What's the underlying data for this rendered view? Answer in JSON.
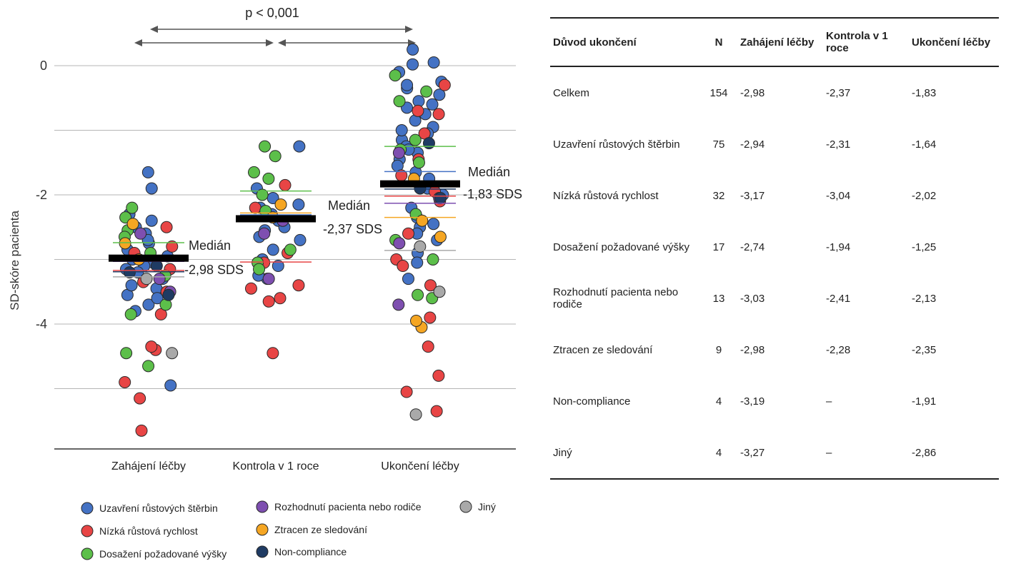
{
  "chart_data": {
    "type": "scatter",
    "ylabel": "SD-skóre pacienta",
    "yticks": [
      0,
      -2,
      -4
    ],
    "ylim": [
      -5.9,
      0.3
    ],
    "grid": true,
    "categories": [
      "Zahájení léčby",
      "Kontrola v 1 roce",
      "Ukončení léčby"
    ],
    "significance": "p < 0,001",
    "medians": [
      {
        "category": "Zahájení léčby",
        "value": -2.98,
        "label": "Medián",
        "value_label": "-2,98 SDS"
      },
      {
        "category": "Kontrola v 1 roce",
        "value": -2.37,
        "label": "Medián",
        "value_label": "-2,37 SDS"
      },
      {
        "category": "Ukončení léčby",
        "value": -1.83,
        "label": "Medián",
        "value_label": "-1,83 SDS"
      }
    ],
    "group_medians": [
      {
        "group": "Uzavření růstových štěrbin",
        "values": [
          -2.94,
          -2.31,
          -1.64
        ]
      },
      {
        "group": "Nízká růstová rychlost",
        "values": [
          -3.17,
          -3.04,
          -2.02
        ]
      },
      {
        "group": "Dosažení požadované výšky",
        "values": [
          -2.74,
          -1.94,
          -1.25
        ]
      },
      {
        "group": "Rozhodnutí pacienta nebo rodiče",
        "values": [
          -3.03,
          -2.41,
          -2.13
        ]
      },
      {
        "group": "Ztracen ze sledování",
        "values": [
          -2.98,
          -2.28,
          -2.35
        ]
      },
      {
        "group": "Non-compliance",
        "values": [
          -3.19,
          null,
          -1.91
        ]
      },
      {
        "group": "Jiný",
        "values": [
          -3.27,
          null,
          -2.86
        ]
      }
    ],
    "series": [
      {
        "name": "Uzavření růstových štěrbin",
        "color": "#4472c4",
        "points": [
          [
            0,
            -1.65
          ],
          [
            0,
            -1.9
          ],
          [
            0,
            -2.3
          ],
          [
            0,
            -2.5
          ],
          [
            0,
            -2.6
          ],
          [
            0,
            -2.75
          ],
          [
            0,
            -2.85
          ],
          [
            0,
            -2.95
          ],
          [
            0,
            -3.05
          ],
          [
            0,
            -3.1
          ],
          [
            0,
            -3.2
          ],
          [
            0,
            -3.3
          ],
          [
            0,
            -3.45
          ],
          [
            0,
            -3.55
          ],
          [
            0,
            -3.7
          ],
          [
            0,
            -3.8
          ],
          [
            0,
            -3.6
          ],
          [
            0,
            -3.4
          ],
          [
            0,
            -2.4
          ],
          [
            0,
            -2.7
          ],
          [
            0,
            -3.0
          ],
          [
            0,
            -3.15
          ],
          [
            0,
            -4.95
          ],
          [
            1,
            -1.25
          ],
          [
            1,
            -1.9
          ],
          [
            1,
            -2.05
          ],
          [
            1,
            -2.15
          ],
          [
            1,
            -2.2
          ],
          [
            1,
            -2.3
          ],
          [
            1,
            -2.4
          ],
          [
            1,
            -2.5
          ],
          [
            1,
            -2.55
          ],
          [
            1,
            -2.65
          ],
          [
            1,
            -2.7
          ],
          [
            1,
            -2.85
          ],
          [
            1,
            -3.0
          ],
          [
            1,
            -3.1
          ],
          [
            1,
            -3.3
          ],
          [
            1,
            -3.25
          ],
          [
            2,
            0.05
          ],
          [
            2,
            0.25
          ],
          [
            2,
            0.02
          ],
          [
            2,
            -0.1
          ],
          [
            2,
            -0.25
          ],
          [
            2,
            -0.35
          ],
          [
            2,
            -0.45
          ],
          [
            2,
            -0.55
          ],
          [
            2,
            -0.65
          ],
          [
            2,
            -0.75
          ],
          [
            2,
            -0.85
          ],
          [
            2,
            -0.95
          ],
          [
            2,
            -1.05
          ],
          [
            2,
            -1.15
          ],
          [
            2,
            -1.25
          ],
          [
            2,
            -1.35
          ],
          [
            2,
            -1.45
          ],
          [
            2,
            -1.55
          ],
          [
            2,
            -1.65
          ],
          [
            2,
            -1.75
          ],
          [
            2,
            -1.9
          ],
          [
            2,
            -2.0
          ],
          [
            2,
            -2.2
          ],
          [
            2,
            -2.35
          ],
          [
            2,
            -2.5
          ],
          [
            2,
            -2.6
          ],
          [
            2,
            -2.7
          ],
          [
            2,
            -2.9
          ],
          [
            2,
            -3.05
          ],
          [
            2,
            -3.3
          ],
          [
            2,
            -0.3
          ],
          [
            2,
            -0.6
          ],
          [
            2,
            -1.0
          ],
          [
            2,
            -1.3
          ],
          [
            2,
            -2.45
          ]
        ]
      },
      {
        "name": "Nízká růstová rychlost",
        "color": "#e84545",
        "points": [
          [
            0,
            -2.5
          ],
          [
            0,
            -2.8
          ],
          [
            0,
            -3.15
          ],
          [
            0,
            -3.5
          ],
          [
            0,
            -3.85
          ],
          [
            0,
            -4.4
          ],
          [
            0,
            -4.35
          ],
          [
            0,
            -4.9
          ],
          [
            0,
            -5.15
          ],
          [
            0,
            -5.65
          ],
          [
            0,
            -2.9
          ],
          [
            0,
            -3.35
          ],
          [
            1,
            -1.85
          ],
          [
            1,
            -2.9
          ],
          [
            1,
            -3.05
          ],
          [
            1,
            -3.4
          ],
          [
            1,
            -3.45
          ],
          [
            1,
            -3.65
          ],
          [
            1,
            -3.6
          ],
          [
            1,
            -4.45
          ],
          [
            1,
            -2.2
          ],
          [
            2,
            -0.3
          ],
          [
            2,
            -0.7
          ],
          [
            2,
            -0.75
          ],
          [
            2,
            -1.05
          ],
          [
            2,
            -1.45
          ],
          [
            2,
            -1.7
          ],
          [
            2,
            -1.95
          ],
          [
            2,
            -2.1
          ],
          [
            2,
            -2.6
          ],
          [
            2,
            -3.0
          ],
          [
            2,
            -3.1
          ],
          [
            2,
            -3.4
          ],
          [
            2,
            -3.9
          ],
          [
            2,
            -4.35
          ],
          [
            2,
            -4.8
          ],
          [
            2,
            -5.05
          ],
          [
            2,
            -5.35
          ]
        ]
      },
      {
        "name": "Dosažení požadované výšky",
        "color": "#5cbf4a",
        "points": [
          [
            0,
            -2.2
          ],
          [
            0,
            -2.35
          ],
          [
            0,
            -2.55
          ],
          [
            0,
            -2.65
          ],
          [
            0,
            -2.9
          ],
          [
            0,
            -3.25
          ],
          [
            0,
            -3.7
          ],
          [
            0,
            -3.85
          ],
          [
            0,
            -4.65
          ],
          [
            0,
            -4.45
          ],
          [
            1,
            -1.25
          ],
          [
            1,
            -1.4
          ],
          [
            1,
            -1.65
          ],
          [
            1,
            -1.75
          ],
          [
            1,
            -2.0
          ],
          [
            1,
            -2.25
          ],
          [
            1,
            -2.85
          ],
          [
            1,
            -3.05
          ],
          [
            1,
            -3.15
          ],
          [
            2,
            -0.15
          ],
          [
            2,
            -0.4
          ],
          [
            2,
            -0.55
          ],
          [
            2,
            -1.15
          ],
          [
            2,
            -1.3
          ],
          [
            2,
            -1.5
          ],
          [
            2,
            -2.3
          ],
          [
            2,
            -2.7
          ],
          [
            2,
            -3.0
          ],
          [
            2,
            -3.55
          ],
          [
            2,
            -3.6
          ]
        ]
      },
      {
        "name": "Rozhodnutí pacienta nebo rodiče",
        "color": "#7e4fb0",
        "points": [
          [
            0,
            -2.6
          ],
          [
            0,
            -3.5
          ],
          [
            0,
            -3.3
          ],
          [
            1,
            -2.4
          ],
          [
            1,
            -2.6
          ],
          [
            1,
            -3.3
          ],
          [
            2,
            -1.35
          ],
          [
            2,
            -2.05
          ],
          [
            2,
            -2.75
          ],
          [
            2,
            -3.7
          ]
        ]
      },
      {
        "name": "Ztracen ze sledování",
        "color": "#f5a623",
        "points": [
          [
            0,
            -2.45
          ],
          [
            0,
            -3.0
          ],
          [
            0,
            -2.75
          ],
          [
            1,
            -2.15
          ],
          [
            1,
            -2.35
          ],
          [
            2,
            -1.75
          ],
          [
            2,
            -2.4
          ],
          [
            2,
            -2.65
          ],
          [
            2,
            -4.05
          ],
          [
            2,
            -3.95
          ]
        ]
      },
      {
        "name": "Non-compliance",
        "color": "#1f3b63",
        "points": [
          [
            0,
            -3.2
          ],
          [
            0,
            -3.55
          ],
          [
            0,
            -3.1
          ],
          [
            2,
            -1.9
          ],
          [
            2,
            -2.05
          ],
          [
            2,
            -1.2
          ]
        ]
      },
      {
        "name": "Jiný",
        "color": "#a9a9a9",
        "points": [
          [
            0,
            -3.3
          ],
          [
            0,
            -4.45
          ],
          [
            2,
            -3.5
          ],
          [
            2,
            -5.4
          ],
          [
            2,
            -2.8
          ]
        ]
      }
    ]
  },
  "table": {
    "headers": [
      "Důvod ukončení",
      "N",
      "Zahájení léčby",
      "Kontrola v 1 roce",
      "Ukončení léčby"
    ],
    "rows": [
      [
        "Celkem",
        "154",
        "-2,98",
        "-2,37",
        "-1,83"
      ],
      [
        "Uzavření růstových štěrbin",
        "75",
        "-2,94",
        "-2,31",
        "-1,64"
      ],
      [
        "Nízká růstová rychlost",
        "32",
        "-3,17",
        "-3,04",
        "-2,02"
      ],
      [
        "Dosažení požadované výšky",
        "17",
        "-2,74",
        "-1,94",
        "-1,25"
      ],
      [
        "Rozhodnutí pacienta nebo rodiče",
        "13",
        "-3,03",
        "-2,41",
        "-2,13"
      ],
      [
        "Ztracen ze sledování",
        "9",
        "-2,98",
        "-2,28",
        "-2,35"
      ],
      [
        "Non-compliance",
        "4",
        "-3,19",
        "–",
        "-1,91"
      ],
      [
        "Jiný",
        "4",
        "-3,27",
        "–",
        "-2,86"
      ]
    ]
  }
}
